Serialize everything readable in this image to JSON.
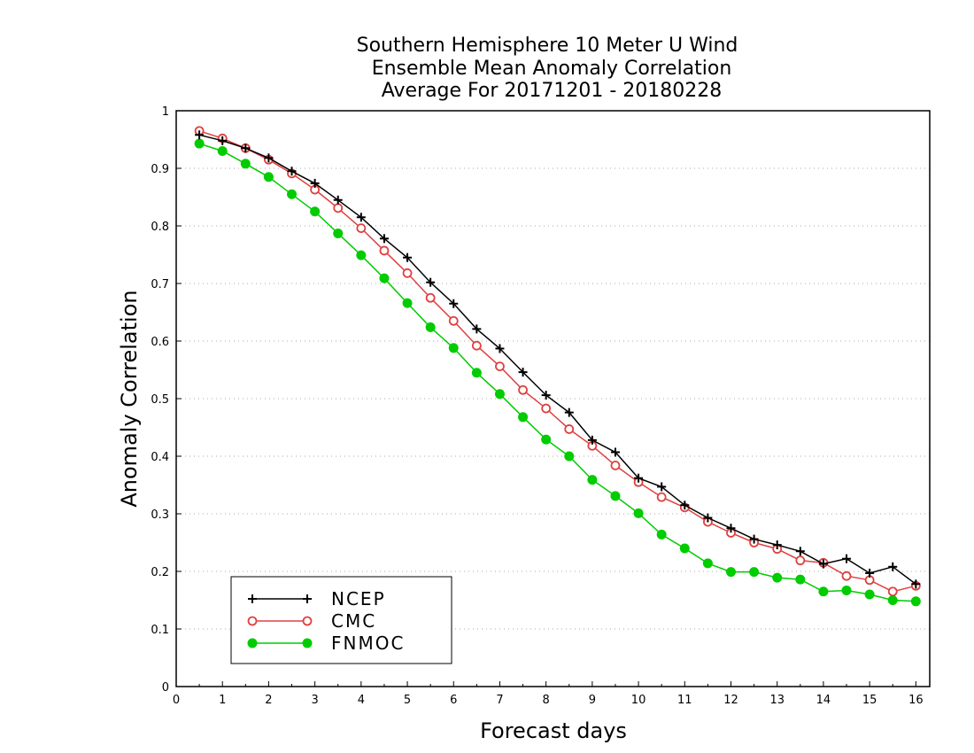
{
  "chart_data": {
    "type": "line",
    "title": [
      "Southern Hemisphere 10 Meter U Wind",
      "Ensemble Mean Anomaly Correlation",
      "Average For 20171201 - 20180228"
    ],
    "xlabel": "Forecast days",
    "ylabel": "Anomaly Correlation",
    "xlim": [
      0,
      16.3
    ],
    "ylim": [
      0,
      1
    ],
    "xticks": [
      "0",
      "1",
      "2",
      "3",
      "4",
      "5",
      "6",
      "7",
      "8",
      "9",
      "10",
      "11",
      "12",
      "13",
      "14",
      "15",
      "16"
    ],
    "yticks": [
      "0",
      "0.1",
      "0.2",
      "0.3",
      "0.4",
      "0.5",
      "0.6",
      "0.7",
      "0.8",
      "0.9",
      "1"
    ],
    "grid": "horizontal dotted",
    "legend_position": "bottom-left",
    "x": [
      0.5,
      1,
      1.5,
      2,
      2.5,
      3,
      3.5,
      4,
      4.5,
      5,
      5.5,
      6,
      6.5,
      7,
      7.5,
      8,
      8.5,
      9,
      9.5,
      10,
      10.5,
      11,
      11.5,
      12,
      12.5,
      13,
      13.5,
      14,
      14.5,
      15,
      15.5,
      16
    ],
    "series": [
      {
        "name": "NCEP",
        "color": "#000000",
        "marker": "plus",
        "values": [
          0.958,
          0.948,
          0.935,
          0.918,
          0.895,
          0.874,
          0.845,
          0.815,
          0.778,
          0.745,
          0.702,
          0.665,
          0.621,
          0.587,
          0.546,
          0.506,
          0.476,
          0.428,
          0.407,
          0.362,
          0.347,
          0.315,
          0.293,
          0.275,
          0.256,
          0.246,
          0.235,
          0.213,
          0.222,
          0.197,
          0.208,
          0.178
        ]
      },
      {
        "name": "CMC",
        "color": "#e04040",
        "marker": "open-circle",
        "values": [
          0.965,
          0.952,
          0.935,
          0.915,
          0.891,
          0.863,
          0.831,
          0.796,
          0.757,
          0.718,
          0.675,
          0.635,
          0.592,
          0.556,
          0.515,
          0.483,
          0.447,
          0.418,
          0.384,
          0.355,
          0.329,
          0.311,
          0.286,
          0.267,
          0.25,
          0.239,
          0.219,
          0.215,
          0.192,
          0.185,
          0.165,
          0.175
        ]
      },
      {
        "name": "FNMOC",
        "color": "#00cc00",
        "marker": "filled-circle",
        "values": [
          0.943,
          0.93,
          0.908,
          0.885,
          0.855,
          0.825,
          0.787,
          0.749,
          0.709,
          0.666,
          0.624,
          0.588,
          0.545,
          0.508,
          0.468,
          0.429,
          0.4,
          0.359,
          0.331,
          0.301,
          0.264,
          0.24,
          0.214,
          0.199,
          0.199,
          0.189,
          0.186,
          0.165,
          0.167,
          0.16,
          0.15,
          0.148
        ]
      }
    ]
  }
}
